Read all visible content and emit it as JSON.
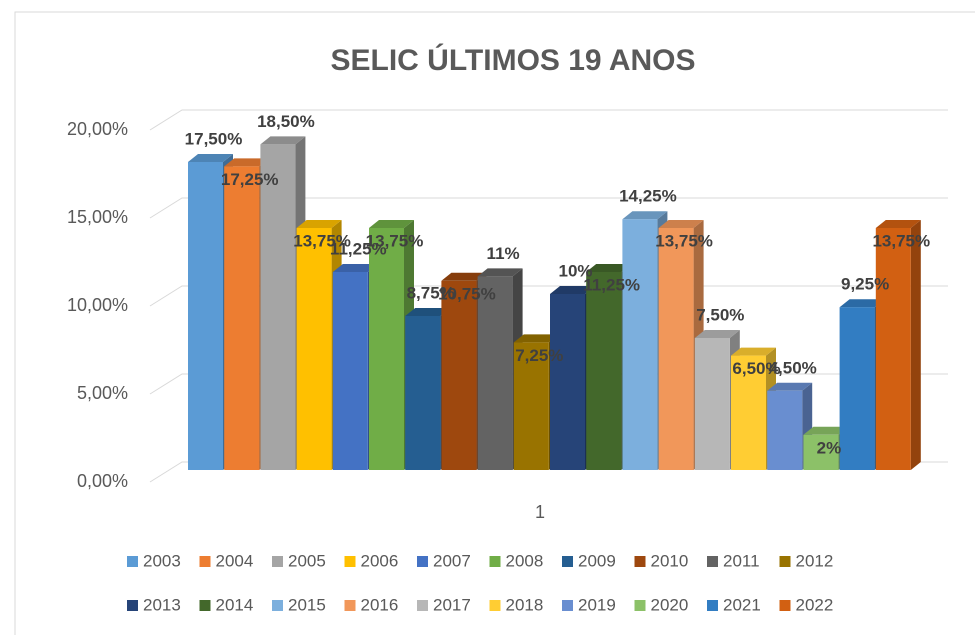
{
  "chart_data": {
    "type": "bar",
    "title": "SELIC ÚLTIMOS 19 ANOS",
    "categories": [
      "1"
    ],
    "ylim": [
      0,
      20
    ],
    "yticks": [
      {
        "value": 0,
        "label": "0,00%"
      },
      {
        "value": 5,
        "label": "5,00%"
      },
      {
        "value": 10,
        "label": "10,00%"
      },
      {
        "value": 15,
        "label": "15,00%"
      },
      {
        "value": 20,
        "label": "20,00%"
      }
    ],
    "grid": true,
    "legend": "bottom",
    "series": [
      {
        "name": "2003",
        "color": "#5b9bd5",
        "values": [
          17.5
        ],
        "value_labels": [
          "17,50%"
        ]
      },
      {
        "name": "2004",
        "color": "#ed7d31",
        "values": [
          17.25
        ],
        "value_labels": [
          "17,25%"
        ]
      },
      {
        "name": "2005",
        "color": "#a5a5a5",
        "values": [
          18.5
        ],
        "value_labels": [
          "18,50%"
        ]
      },
      {
        "name": "2006",
        "color": "#ffc000",
        "values": [
          13.75
        ],
        "value_labels": [
          "13,75%"
        ]
      },
      {
        "name": "2007",
        "color": "#4472c4",
        "values": [
          11.25
        ],
        "value_labels": [
          "11,25%"
        ]
      },
      {
        "name": "2008",
        "color": "#70ad47",
        "values": [
          13.75
        ],
        "value_labels": [
          "13,75%"
        ]
      },
      {
        "name": "2009",
        "color": "#255e91",
        "values": [
          8.75
        ],
        "value_labels": [
          "8,75%"
        ]
      },
      {
        "name": "2010",
        "color": "#9e480e",
        "values": [
          10.75
        ],
        "value_labels": [
          "10,75%"
        ]
      },
      {
        "name": "2011",
        "color": "#636363",
        "values": [
          11
        ],
        "value_labels": [
          "11%"
        ]
      },
      {
        "name": "2012",
        "color": "#997300",
        "values": [
          7.25
        ],
        "value_labels": [
          "7,25%"
        ]
      },
      {
        "name": "2013",
        "color": "#264478",
        "values": [
          10
        ],
        "value_labels": [
          "10%"
        ]
      },
      {
        "name": "2014",
        "color": "#43682b",
        "values": [
          11.25
        ],
        "value_labels": [
          "11,25%"
        ]
      },
      {
        "name": "2015",
        "color": "#7cafdd",
        "values": [
          14.25
        ],
        "value_labels": [
          "14,25%"
        ]
      },
      {
        "name": "2016",
        "color": "#f1975a",
        "values": [
          13.75
        ],
        "value_labels": [
          "13,75%"
        ]
      },
      {
        "name": "2017",
        "color": "#b7b7b7",
        "values": [
          7.5
        ],
        "value_labels": [
          "7,50%"
        ]
      },
      {
        "name": "2018",
        "color": "#ffcd33",
        "values": [
          6.5
        ],
        "value_labels": [
          "6,50%"
        ]
      },
      {
        "name": "2019",
        "color": "#698ed0",
        "values": [
          4.5
        ],
        "value_labels": [
          "4,50%"
        ]
      },
      {
        "name": "2020",
        "color": "#8cc168",
        "values": [
          2
        ],
        "value_labels": [
          "2%"
        ]
      },
      {
        "name": "2021",
        "color": "#327dc2",
        "values": [
          9.25
        ],
        "value_labels": [
          "9,25%"
        ]
      },
      {
        "name": "2022",
        "color": "#d26012",
        "values": [
          13.75
        ],
        "value_labels": [
          "13,75%"
        ]
      }
    ]
  }
}
